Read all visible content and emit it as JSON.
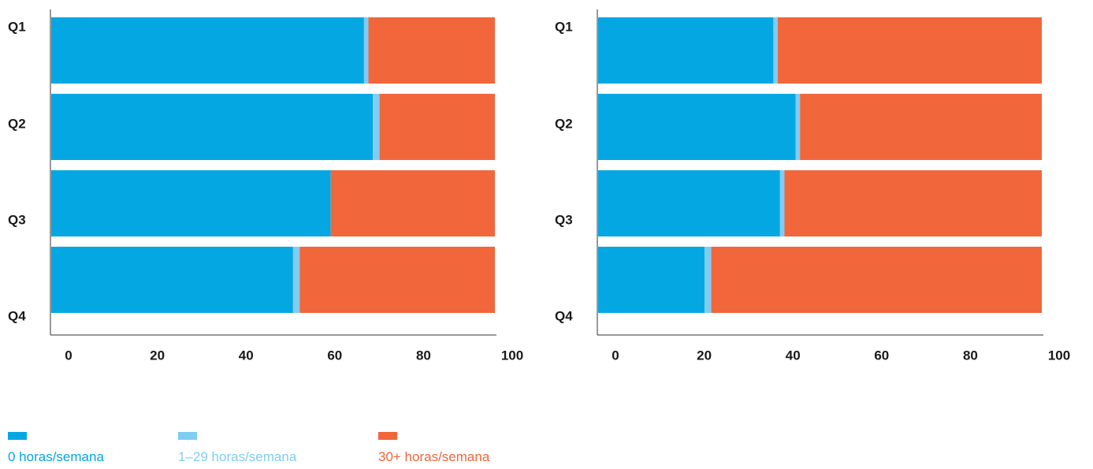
{
  "colors": {
    "zero": "#05a7e3",
    "part": "#7fcdf2",
    "full": "#f1663b"
  },
  "legend": [
    {
      "label": "0 horas/semana",
      "color": "#05a7e3"
    },
    {
      "label": "1–29 horas/semana",
      "color": "#7fcdf2"
    },
    {
      "label": "30+ horas/semana",
      "color": "#f1663b"
    }
  ],
  "chart_data": [
    {
      "type": "bar",
      "orientation": "horizontal",
      "stacked": true,
      "categories": [
        "Q1",
        "Q2",
        "Q3",
        "Q4"
      ],
      "series": [
        {
          "name": "0 horas/semana",
          "values": [
            70.5,
            72.5,
            63,
            54.5
          ]
        },
        {
          "name": "1–29 horas/semana",
          "values": [
            1,
            1.5,
            0,
            1.5
          ]
        },
        {
          "name": "30+ horas/semana",
          "values": [
            28.5,
            26,
            37,
            44
          ]
        }
      ],
      "xlim": [
        0,
        100
      ],
      "xticks": [
        "0",
        "20",
        "40",
        "60",
        "80",
        "100"
      ],
      "title": "",
      "xlabel": "",
      "ylabel": "",
      "grid": false,
      "legend_position": "bottom-left"
    },
    {
      "type": "bar",
      "orientation": "horizontal",
      "stacked": true,
      "categories": [
        "Q1",
        "Q2",
        "Q3",
        "Q4"
      ],
      "series": [
        {
          "name": "0 horas/semana",
          "values": [
            39.5,
            44.5,
            41,
            24
          ]
        },
        {
          "name": "1–29 horas/semana",
          "values": [
            1,
            1,
            1,
            1.5
          ]
        },
        {
          "name": "30+ horas/semana",
          "values": [
            59.5,
            54.5,
            58,
            74.5
          ]
        }
      ],
      "xlim": [
        0,
        100
      ],
      "xticks": [
        "0",
        "20",
        "40",
        "60",
        "80",
        "100"
      ],
      "title": "",
      "xlabel": "",
      "ylabel": "",
      "grid": false,
      "legend_position": "bottom-left"
    }
  ]
}
